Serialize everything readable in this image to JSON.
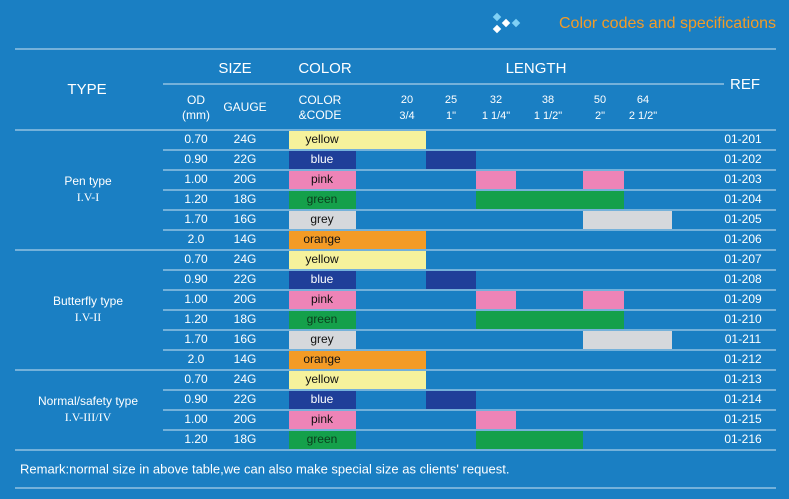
{
  "header": {
    "title": "Color codes and specifications"
  },
  "columns": {
    "type": "TYPE",
    "size": "SIZE",
    "color": "COLOR",
    "length": "LENGTH",
    "ref": "REF",
    "od": [
      "OD",
      "(mm)"
    ],
    "gauge": "GAUGE",
    "code": [
      "COLOR",
      "&CODE"
    ],
    "lengths": [
      [
        "20",
        "3/4"
      ],
      [
        "25",
        "1\""
      ],
      [
        "32",
        "1 1/4\""
      ],
      [
        "38",
        "1 1/2\""
      ],
      [
        "50",
        "2\""
      ],
      [
        "64",
        "2 1/2\""
      ]
    ]
  },
  "groups": [
    {
      "name": "Pen type",
      "code": "I.V-I",
      "rows": [
        {
          "od": "0.70",
          "gauge": "24G",
          "color": "yellow",
          "swatch": "#f6f29c",
          "lengths": [
            true,
            false,
            false,
            false,
            false,
            false
          ],
          "ref": "01-201"
        },
        {
          "od": "0.90",
          "gauge": "22G",
          "color": "blue",
          "swatch": "#1f3f99",
          "lengths": [
            false,
            true,
            false,
            false,
            false,
            false
          ],
          "ref": "01-202"
        },
        {
          "od": "1.00",
          "gauge": "20G",
          "color": "pink",
          "swatch": "#ee84b7",
          "lengths": [
            false,
            false,
            true,
            false,
            true,
            false
          ],
          "ref": "01-203"
        },
        {
          "od": "1.20",
          "gauge": "18G",
          "color": "green",
          "swatch": "#14a04b",
          "lengths": [
            false,
            false,
            true,
            true,
            true,
            false
          ],
          "ref": "01-204"
        },
        {
          "od": "1.70",
          "gauge": "16G",
          "color": "grey",
          "swatch": "#d5d8dc",
          "lengths": [
            false,
            false,
            false,
            false,
            true,
            true
          ],
          "ref": "01-205"
        },
        {
          "od": "2.0",
          "gauge": "14G",
          "color": "orange",
          "swatch": "#f39b26",
          "lengths": [
            true,
            false,
            false,
            false,
            false,
            false
          ],
          "ref": "01-206"
        }
      ]
    },
    {
      "name": "Butterfly type",
      "code": "I.V-II",
      "rows": [
        {
          "od": "0.70",
          "gauge": "24G",
          "color": "yellow",
          "swatch": "#f6f29c",
          "lengths": [
            true,
            false,
            false,
            false,
            false,
            false
          ],
          "ref": "01-207"
        },
        {
          "od": "0.90",
          "gauge": "22G",
          "color": "blue",
          "swatch": "#1f3f99",
          "lengths": [
            false,
            true,
            false,
            false,
            false,
            false
          ],
          "ref": "01-208"
        },
        {
          "od": "1.00",
          "gauge": "20G",
          "color": "pink",
          "swatch": "#ee84b7",
          "lengths": [
            false,
            false,
            true,
            false,
            true,
            false
          ],
          "ref": "01-209"
        },
        {
          "od": "1.20",
          "gauge": "18G",
          "color": "green",
          "swatch": "#14a04b",
          "lengths": [
            false,
            false,
            true,
            true,
            true,
            false
          ],
          "ref": "01-210"
        },
        {
          "od": "1.70",
          "gauge": "16G",
          "color": "grey",
          "swatch": "#d5d8dc",
          "lengths": [
            false,
            false,
            false,
            false,
            true,
            true
          ],
          "ref": "01-211"
        },
        {
          "od": "2.0",
          "gauge": "14G",
          "color": "orange",
          "swatch": "#f39b26",
          "lengths": [
            true,
            false,
            false,
            false,
            false,
            false
          ],
          "ref": "01-212"
        }
      ]
    },
    {
      "name": "Normal/safety type",
      "code": "I.V-III/IV",
      "rows": [
        {
          "od": "0.70",
          "gauge": "24G",
          "color": "yellow",
          "swatch": "#f6f29c",
          "lengths": [
            true,
            false,
            false,
            false,
            false,
            false
          ],
          "ref": "01-213"
        },
        {
          "od": "0.90",
          "gauge": "22G",
          "color": "blue",
          "swatch": "#1f3f99",
          "lengths": [
            false,
            true,
            false,
            false,
            false,
            false
          ],
          "ref": "01-214"
        },
        {
          "od": "1.00",
          "gauge": "20G",
          "color": "pink",
          "swatch": "#ee84b7",
          "lengths": [
            false,
            false,
            true,
            false,
            false,
            false
          ],
          "ref": "01-215"
        },
        {
          "od": "1.20",
          "gauge": "18G",
          "color": "green",
          "swatch": "#14a04b",
          "lengths": [
            false,
            false,
            true,
            true,
            false,
            false
          ],
          "ref": "01-216"
        }
      ]
    }
  ],
  "remark": "Remark:normal size in above table,we can also make special size as clients' request."
}
